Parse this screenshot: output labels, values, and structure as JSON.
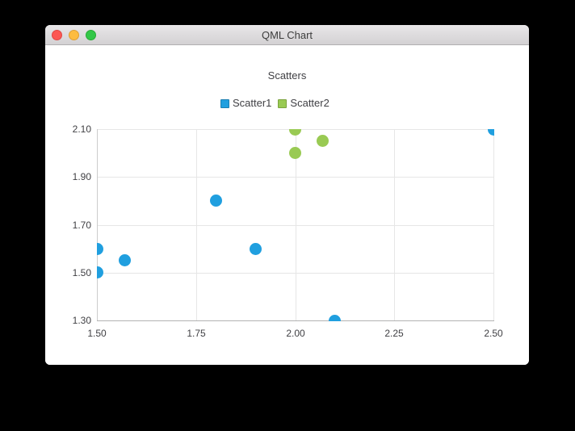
{
  "window": {
    "title": "QML Chart",
    "traffic_lights": [
      {
        "name": "close",
        "color": "#fc5753",
        "border": "#df4744"
      },
      {
        "name": "minimize",
        "color": "#fdbc40",
        "border": "#de9f34"
      },
      {
        "name": "zoom",
        "color": "#33c748",
        "border": "#27aa35"
      }
    ]
  },
  "chart_data": {
    "type": "scatter",
    "title": "Scatters",
    "xlabel": "",
    "ylabel": "",
    "grid": true,
    "legend_position": "top",
    "marker_size": 15,
    "x_axis": {
      "min": 1.5,
      "max": 2.5,
      "ticks": [
        "1.50",
        "1.75",
        "2.00",
        "2.25",
        "2.50"
      ]
    },
    "y_axis": {
      "min": 1.3,
      "max": 2.1,
      "ticks": [
        "2.10",
        "1.90",
        "1.70",
        "1.50",
        "1.30"
      ]
    },
    "series": [
      {
        "name": "Scatter1",
        "color": "#209fdf",
        "border": "#1a7fb2",
        "points": [
          {
            "x": 1.5,
            "y": 1.5
          },
          {
            "x": 1.5,
            "y": 1.6
          },
          {
            "x": 1.57,
            "y": 1.55
          },
          {
            "x": 1.8,
            "y": 1.8
          },
          {
            "x": 1.9,
            "y": 1.6
          },
          {
            "x": 2.1,
            "y": 1.3
          },
          {
            "x": 2.5,
            "y": 2.1
          }
        ]
      },
      {
        "name": "Scatter2",
        "color": "#99ca53",
        "border": "#7ba33e",
        "points": [
          {
            "x": 2.0,
            "y": 2.0
          },
          {
            "x": 2.0,
            "y": 2.1
          },
          {
            "x": 2.07,
            "y": 2.05
          }
        ]
      }
    ]
  }
}
